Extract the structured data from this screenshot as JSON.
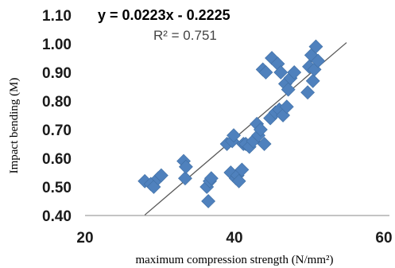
{
  "chart_data": {
    "type": "scatter",
    "xlabel": "maximum compression strength (N/mm²)",
    "ylabel": "Impact bending (M)",
    "xlim": [
      20,
      60
    ],
    "ylim": [
      0.4,
      1.1
    ],
    "x_ticks": [
      "20",
      "40",
      "60"
    ],
    "y_ticks": [
      "0.40",
      "0.50",
      "0.60",
      "0.70",
      "0.80",
      "0.90",
      "1.00",
      "1.10"
    ],
    "grid": false,
    "legend": "none",
    "marker": "diamond",
    "marker_color": "#4F81BD",
    "trendline": {
      "type": "linear",
      "slope": 0.0223,
      "intercept": -0.2225,
      "x_range": [
        28.0,
        55.0
      ],
      "color": "#595959",
      "equation_label": "y = 0.0223x - 0.2225",
      "r2_label": "R² = 0.751"
    },
    "series": [
      {
        "points": [
          [
            28.0,
            0.52
          ],
          [
            28.8,
            0.51
          ],
          [
            29.2,
            0.5
          ],
          [
            29.8,
            0.53
          ],
          [
            30.2,
            0.54
          ],
          [
            33.2,
            0.59
          ],
          [
            33.4,
            0.53
          ],
          [
            33.5,
            0.57
          ],
          [
            36.3,
            0.5
          ],
          [
            36.5,
            0.45
          ],
          [
            36.7,
            0.52
          ],
          [
            36.9,
            0.53
          ],
          [
            39.0,
            0.65
          ],
          [
            39.5,
            0.55
          ],
          [
            39.7,
            0.66
          ],
          [
            39.9,
            0.68
          ],
          [
            40.2,
            0.53
          ],
          [
            40.4,
            0.54
          ],
          [
            40.6,
            0.52
          ],
          [
            41.0,
            0.56
          ],
          [
            41.2,
            0.65
          ],
          [
            41.5,
            0.65
          ],
          [
            42.0,
            0.64
          ],
          [
            42.5,
            0.66
          ],
          [
            43.0,
            0.72
          ],
          [
            43.2,
            0.68
          ],
          [
            43.5,
            0.7
          ],
          [
            43.8,
            0.91
          ],
          [
            44.0,
            0.65
          ],
          [
            44.2,
            0.9
          ],
          [
            44.8,
            0.74
          ],
          [
            45.0,
            0.95
          ],
          [
            45.5,
            0.76
          ],
          [
            45.8,
            0.93
          ],
          [
            46.0,
            0.77
          ],
          [
            46.2,
            0.9
          ],
          [
            46.5,
            0.75
          ],
          [
            46.8,
            0.86
          ],
          [
            47.0,
            0.78
          ],
          [
            47.2,
            0.84
          ],
          [
            47.5,
            0.88
          ],
          [
            48.0,
            0.9
          ],
          [
            49.8,
            0.83
          ],
          [
            50.0,
            0.92
          ],
          [
            50.3,
            0.96
          ],
          [
            50.5,
            0.87
          ],
          [
            50.7,
            0.91
          ],
          [
            50.9,
            0.99
          ],
          [
            51.2,
            0.94
          ]
        ]
      }
    ]
  }
}
